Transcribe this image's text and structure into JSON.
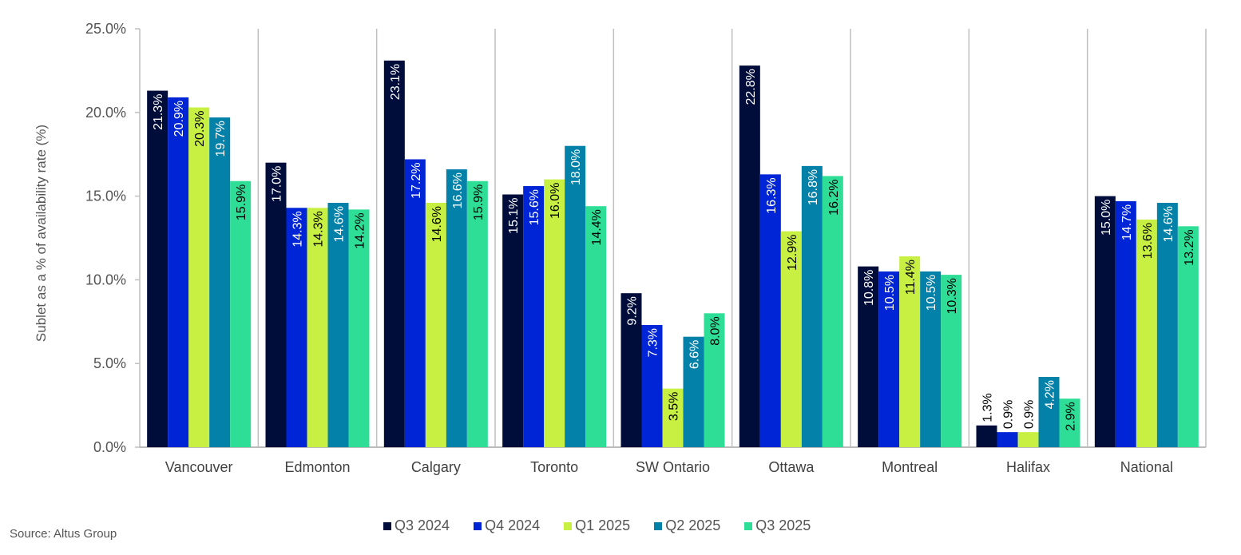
{
  "chart_data": {
    "type": "bar",
    "title": "",
    "xlabel": "",
    "ylabel": "Sublet as a % of availability rate (%)",
    "ylim": [
      0,
      25
    ],
    "yticks": [
      "0.0%",
      "5.0%",
      "10.0%",
      "15.0%",
      "20.0%",
      "25.0%"
    ],
    "ytick_values": [
      0,
      5,
      10,
      15,
      20,
      25
    ],
    "grid": "vertical separators between categories",
    "legend_position": "bottom-center",
    "categories": [
      "Vancouver",
      "Edmonton",
      "Calgary",
      "Toronto",
      "SW Ontario",
      "Ottawa",
      "Montreal",
      "Halifax",
      "National"
    ],
    "series": [
      {
        "name": "Q3 2024",
        "color": "#000D3B",
        "label_color": "#ffffff",
        "values": [
          21.3,
          17.0,
          23.1,
          15.1,
          9.2,
          22.8,
          10.8,
          1.3,
          15.0
        ]
      },
      {
        "name": "Q4 2024",
        "color": "#0025D6",
        "label_color": "#ffffff",
        "values": [
          20.9,
          14.3,
          17.2,
          15.6,
          7.3,
          16.3,
          10.5,
          0.9,
          14.7
        ]
      },
      {
        "name": "Q1 2025",
        "color": "#C8F043",
        "label_color": "#000000",
        "values": [
          20.3,
          14.3,
          14.6,
          16.0,
          3.5,
          12.9,
          11.4,
          0.9,
          13.6
        ]
      },
      {
        "name": "Q2 2025",
        "color": "#0381A9",
        "label_color": "#ffffff",
        "values": [
          19.7,
          14.6,
          16.6,
          18.0,
          6.6,
          16.8,
          10.5,
          4.2,
          14.6
        ]
      },
      {
        "name": "Q3 2025",
        "color": "#2EDE96",
        "label_color": "#000000",
        "values": [
          15.9,
          14.2,
          15.9,
          14.4,
          8.0,
          16.2,
          10.3,
          2.9,
          13.2
        ]
      }
    ]
  },
  "source": "Source: Altus Group"
}
